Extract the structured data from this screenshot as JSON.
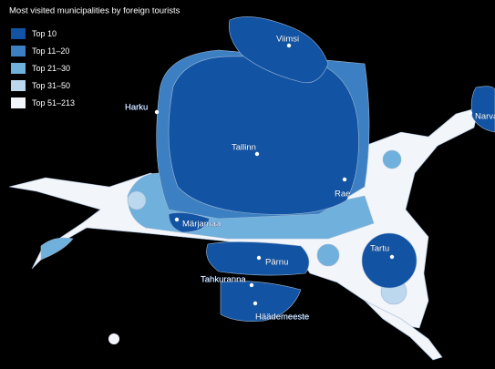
{
  "title": "Most visited municipalities by foreign tourists",
  "legend": [
    {
      "label": "Top 10"
    },
    {
      "label": "Top 11–20"
    },
    {
      "label": "Top 21–30"
    },
    {
      "label": "Top 31–50"
    },
    {
      "label": "Top 51–213"
    }
  ],
  "places": [
    {
      "label": "Viimsi"
    },
    {
      "label": "Harku"
    },
    {
      "label": "Tallinn"
    },
    {
      "label": "Rae"
    },
    {
      "label": "Märjamaa"
    },
    {
      "label": "Tartu"
    },
    {
      "label": "Pärnu"
    },
    {
      "label": "Tahkuranna"
    },
    {
      "label": "Häädemeeste"
    },
    {
      "label": "Narva"
    }
  ]
}
